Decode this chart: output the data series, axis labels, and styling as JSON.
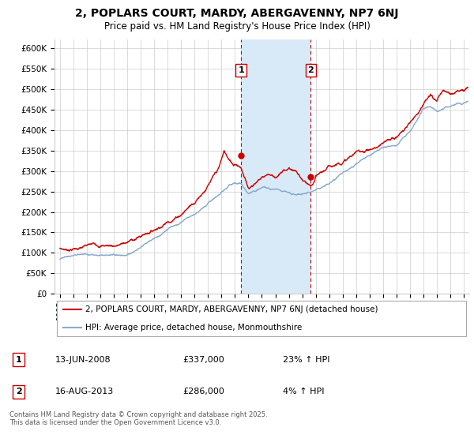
{
  "title": "2, POPLARS COURT, MARDY, ABERGAVENNY, NP7 6NJ",
  "subtitle": "Price paid vs. HM Land Registry's House Price Index (HPI)",
  "yticks": [
    0,
    50000,
    100000,
    150000,
    200000,
    250000,
    300000,
    350000,
    400000,
    450000,
    500000,
    550000,
    600000
  ],
  "ylim": [
    0,
    620000
  ],
  "transaction1": {
    "date": "13-JUN-2008",
    "price": 337000,
    "pct": "23% ↑ HPI",
    "label": "1"
  },
  "transaction2": {
    "date": "16-AUG-2013",
    "price": 286000,
    "pct": "4% ↑ HPI",
    "label": "2"
  },
  "transaction1_x": 2008.45,
  "transaction2_x": 2013.62,
  "legend_line1": "2, POPLARS COURT, MARDY, ABERGAVENNY, NP7 6NJ (detached house)",
  "legend_line2": "HPI: Average price, detached house, Monmouthshire",
  "footer": "Contains HM Land Registry data © Crown copyright and database right 2025.\nThis data is licensed under the Open Government Licence v3.0.",
  "line_color_red": "#cc0000",
  "line_color_blue": "#88aacc",
  "shaded_color": "#d8eaf8",
  "dashed_color": "#cc0000",
  "grid_color": "#cccccc",
  "bg_color": "#ffffff",
  "xlim_start": 1994.6,
  "xlim_end": 2025.4
}
